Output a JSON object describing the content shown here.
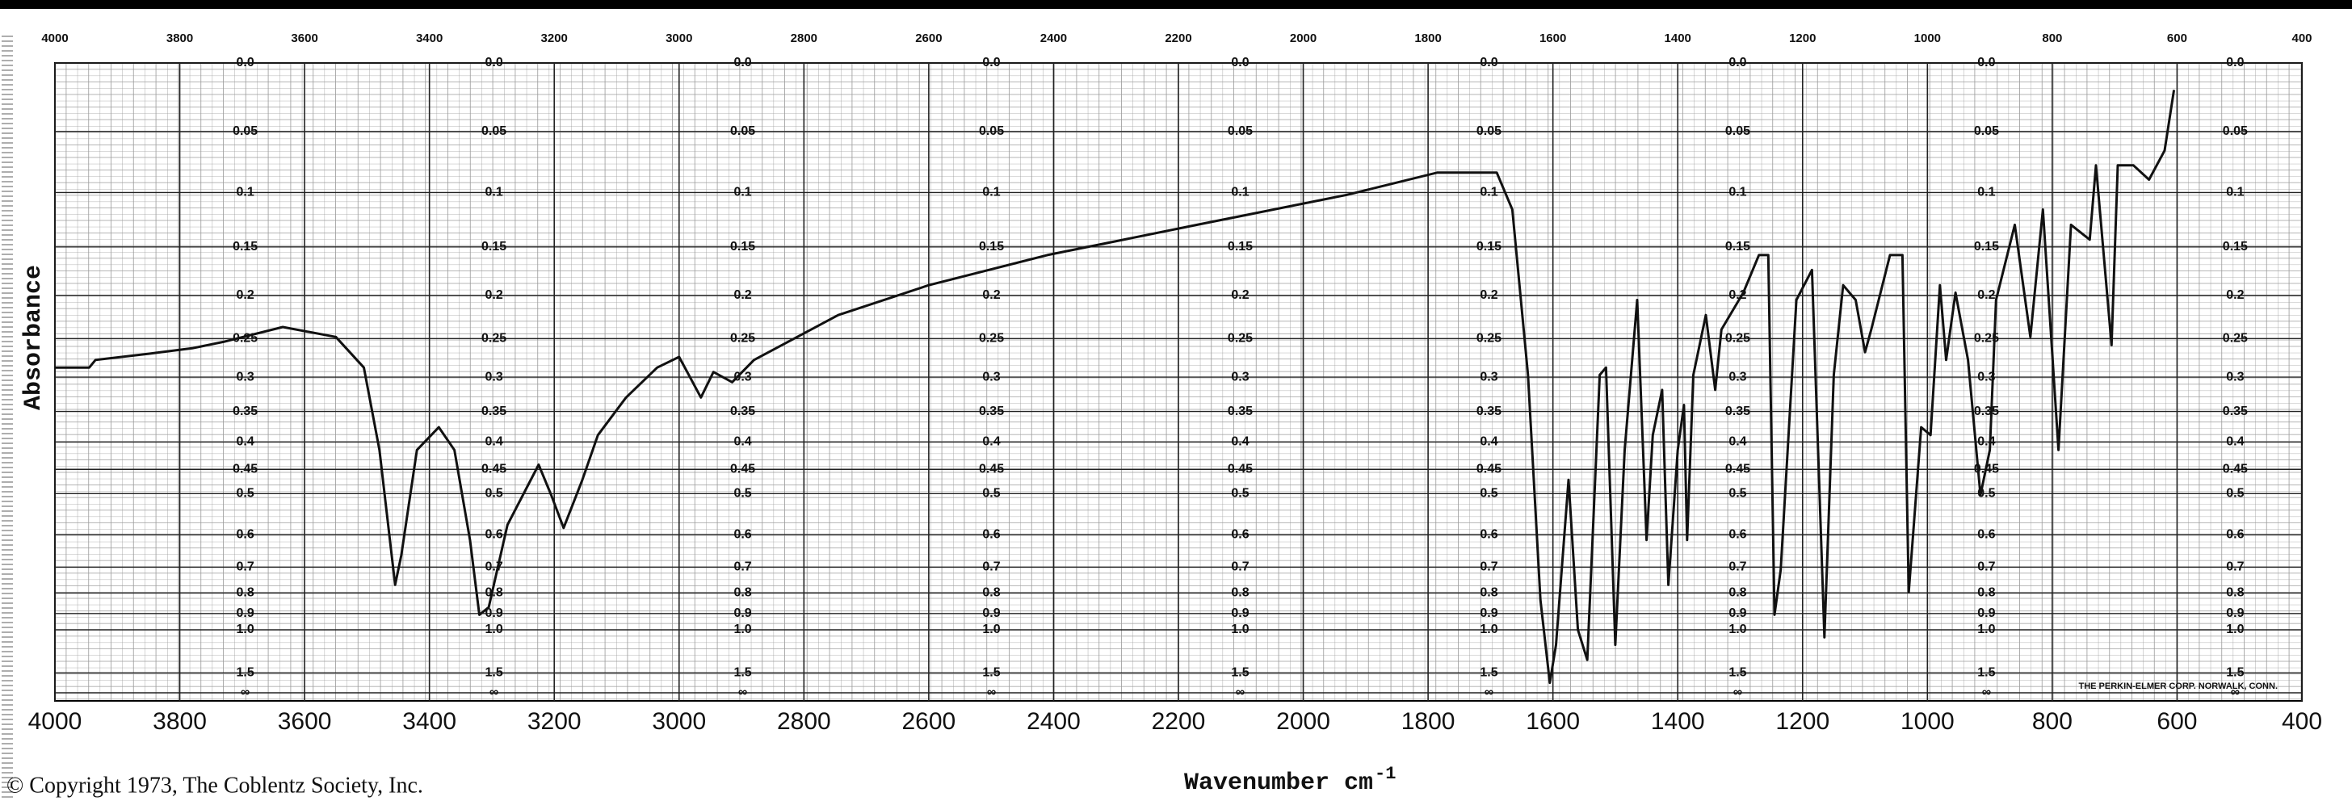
{
  "chart_data": {
    "type": "line",
    "y_label": "Absorbance",
    "x_label": "Wavenumber cm",
    "x_label_superscript": "-1",
    "copyright": "© Copyright 1973, The Coblentz Society, Inc.",
    "credit": "THE PERKIN-ELMER CORP. NORWALK, CONN.",
    "y_scale": "transmittance",
    "grid": true,
    "color": "#111111",
    "xlim": [
      4000,
      400
    ],
    "xticks": [
      4000,
      3800,
      3600,
      3400,
      3200,
      3000,
      2800,
      2600,
      2400,
      2200,
      2000,
      1800,
      1600,
      1400,
      1200,
      1000,
      800,
      600,
      400
    ],
    "ylim": [
      0,
      null
    ],
    "yticks": [
      {
        "value": 0,
        "label": "0.0"
      },
      0.05,
      0.1,
      0.15,
      0.2,
      0.25,
      0.3,
      0.35,
      0.4,
      0.45,
      0.5,
      0.6,
      0.7,
      0.8,
      0.9,
      {
        "value": 1,
        "label": "1.0"
      },
      1.5,
      {
        "value": null,
        "label": "∞"
      }
    ],
    "x": [
      4000,
      3945,
      3935,
      3850,
      3780,
      3730,
      3635,
      3550,
      3505,
      3480,
      3455,
      3445,
      3420,
      3385,
      3360,
      3335,
      3320,
      3305,
      3275,
      3225,
      3205,
      3185,
      3155,
      3130,
      3085,
      3035,
      3000,
      2965,
      2945,
      2915,
      2880,
      2745,
      2600,
      2410,
      2170,
      1930,
      1785,
      1690,
      1665,
      1640,
      1620,
      1605,
      1595,
      1575,
      1560,
      1545,
      1525,
      1515,
      1500,
      1485,
      1465,
      1450,
      1440,
      1425,
      1415,
      1400,
      1390,
      1385,
      1375,
      1355,
      1340,
      1330,
      1295,
      1270,
      1255,
      1245,
      1235,
      1210,
      1185,
      1165,
      1150,
      1135,
      1115,
      1100,
      1090,
      1060,
      1040,
      1030,
      1010,
      995,
      980,
      970,
      955,
      935,
      915,
      900,
      890,
      860,
      835,
      815,
      790,
      770,
      740,
      730,
      705,
      695,
      670,
      645,
      620,
      605
    ],
    "values": [
      0.287,
      0.287,
      0.277,
      0.269,
      0.262,
      0.254,
      0.236,
      0.248,
      0.287,
      0.414,
      0.766,
      0.66,
      0.414,
      0.375,
      0.414,
      0.615,
      0.907,
      0.867,
      0.574,
      0.441,
      0.503,
      0.582,
      0.471,
      0.388,
      0.329,
      0.287,
      0.273,
      0.329,
      0.293,
      0.307,
      0.277,
      0.222,
      0.189,
      0.158,
      0.129,
      0.102,
      0.083,
      0.083,
      0.115,
      0.297,
      0.831,
      1.8,
      1.118,
      0.471,
      1.0,
      1.281,
      0.297,
      0.287,
      1.118,
      0.414,
      0.205,
      0.615,
      0.388,
      0.318,
      0.766,
      0.414,
      0.34,
      0.615,
      0.297,
      0.222,
      0.318,
      0.239,
      0.197,
      0.158,
      0.158,
      0.907,
      0.709,
      0.205,
      0.173,
      1.055,
      0.297,
      0.189,
      0.205,
      0.267,
      0.239,
      0.158,
      0.158,
      0.797,
      0.375,
      0.388,
      0.189,
      0.277,
      0.197,
      0.277,
      0.503,
      0.414,
      0.205,
      0.129,
      0.248,
      0.115,
      0.414,
      0.129,
      0.143,
      0.077,
      0.258,
      0.077,
      0.077,
      0.089,
      0.065,
      0.019
    ]
  }
}
